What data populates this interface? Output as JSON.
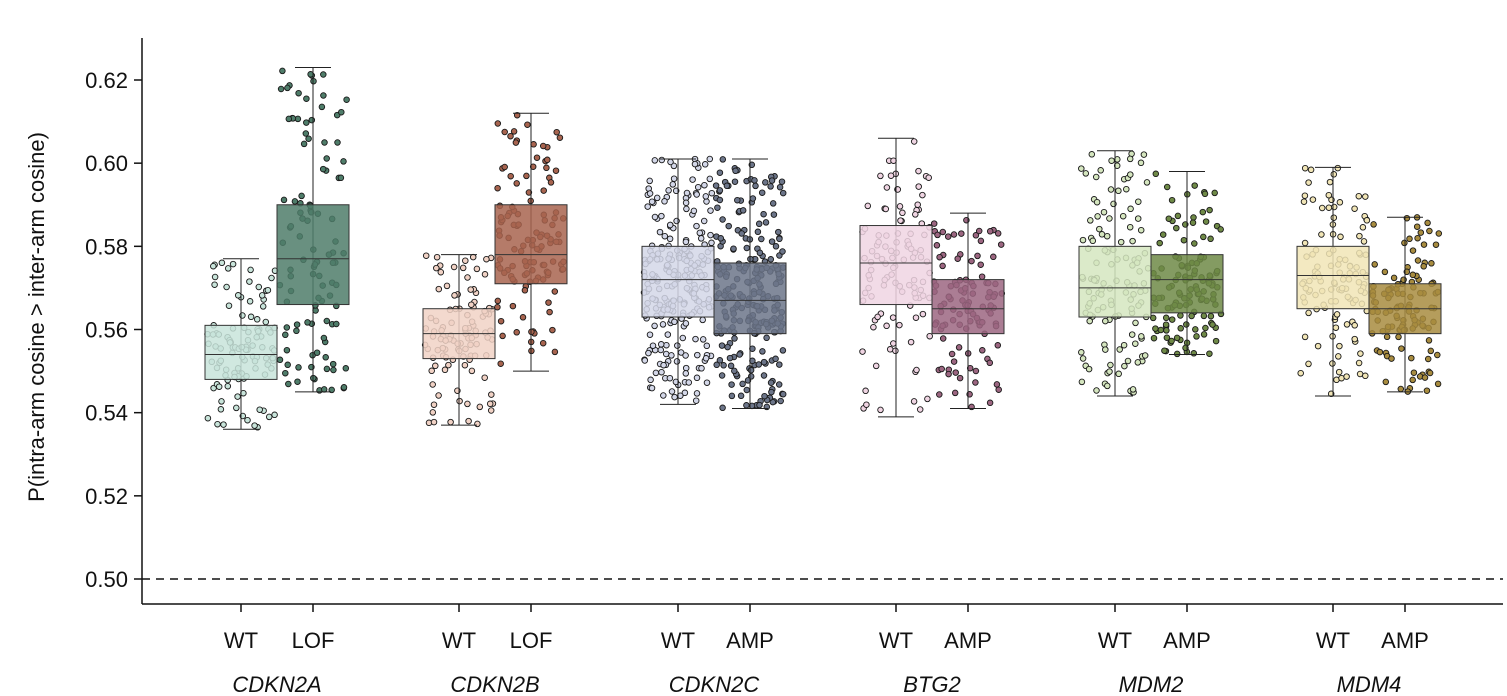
{
  "chart_data": {
    "type": "box",
    "ylabel": "P(intra-arm cosine > inter-arm cosine)",
    "ylim": [
      0.494,
      0.632
    ],
    "yticks": [
      0.5,
      0.52,
      0.54,
      0.56,
      0.58,
      0.6,
      0.62
    ],
    "reference_line": 0.5,
    "groups": [
      {
        "gene": "CDKN2A",
        "boxes": [
          {
            "label": "WT",
            "color": "#c8e4da",
            "n": 110,
            "q1": 0.548,
            "median": 0.554,
            "q3": 0.561,
            "whisker_low": 0.536,
            "whisker_high": 0.577
          },
          {
            "label": "LOF",
            "color": "#4f7d6a",
            "n": 110,
            "q1": 0.566,
            "median": 0.577,
            "q3": 0.59,
            "whisker_low": 0.545,
            "whisker_high": 0.623
          }
        ]
      },
      {
        "gene": "CDKN2B",
        "boxes": [
          {
            "label": "WT",
            "color": "#f1d2c5",
            "n": 110,
            "q1": 0.553,
            "median": 0.559,
            "q3": 0.565,
            "whisker_low": 0.537,
            "whisker_high": 0.578
          },
          {
            "label": "LOF",
            "color": "#a8644f",
            "n": 120,
            "q1": 0.571,
            "median": 0.578,
            "q3": 0.59,
            "whisker_low": 0.55,
            "whisker_high": 0.612
          }
        ]
      },
      {
        "gene": "CDKN2C",
        "boxes": [
          {
            "label": "WT",
            "color": "#d3d7e8",
            "n": 260,
            "q1": 0.563,
            "median": 0.572,
            "q3": 0.58,
            "whisker_low": 0.542,
            "whisker_high": 0.601
          },
          {
            "label": "AMP",
            "color": "#6c7589",
            "n": 260,
            "q1": 0.559,
            "median": 0.567,
            "q3": 0.576,
            "whisker_low": 0.541,
            "whisker_high": 0.601
          }
        ]
      },
      {
        "gene": "BTG2",
        "boxes": [
          {
            "label": "WT",
            "color": "#f0d5e3",
            "n": 110,
            "q1": 0.566,
            "median": 0.576,
            "q3": 0.585,
            "whisker_low": 0.539,
            "whisker_high": 0.606
          },
          {
            "label": "AMP",
            "color": "#9c6681",
            "n": 110,
            "q1": 0.559,
            "median": 0.565,
            "q3": 0.572,
            "whisker_low": 0.541,
            "whisker_high": 0.588
          }
        ]
      },
      {
        "gene": "MDM2",
        "boxes": [
          {
            "label": "WT",
            "color": "#d5e6bf",
            "n": 130,
            "q1": 0.563,
            "median": 0.57,
            "q3": 0.58,
            "whisker_low": 0.544,
            "whisker_high": 0.603
          },
          {
            "label": "AMP",
            "color": "#6f8a47",
            "n": 130,
            "q1": 0.564,
            "median": 0.572,
            "q3": 0.578,
            "whisker_low": 0.554,
            "whisker_high": 0.598
          }
        ]
      },
      {
        "gene": "MDM4",
        "boxes": [
          {
            "label": "WT",
            "color": "#f1e5b6",
            "n": 120,
            "q1": 0.565,
            "median": 0.573,
            "q3": 0.58,
            "whisker_low": 0.544,
            "whisker_high": 0.599
          },
          {
            "label": "AMP",
            "color": "#a88c3f",
            "n": 120,
            "q1": 0.559,
            "median": 0.565,
            "q3": 0.571,
            "whisker_low": 0.545,
            "whisker_high": 0.587
          }
        ]
      }
    ]
  }
}
